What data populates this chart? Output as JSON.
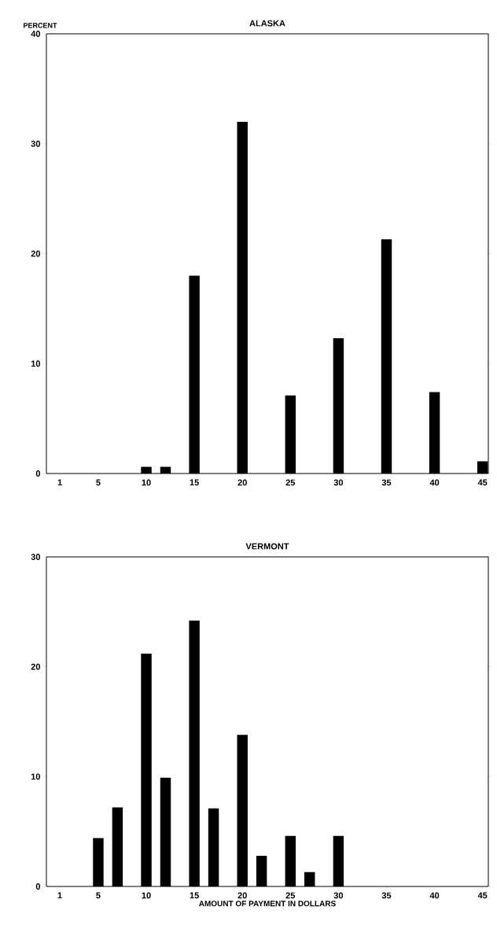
{
  "chart_data": [
    {
      "type": "bar",
      "title": "ALASKA",
      "ylabel": "PERCENT",
      "color": "#000000",
      "x": [
        10,
        12,
        15,
        20,
        25,
        30,
        35,
        40,
        45
      ],
      "values": [
        0.6,
        0.6,
        18,
        32,
        7.1,
        12.3,
        21.3,
        7.4,
        1.1
      ],
      "xlim": [
        -0.4,
        45.6
      ],
      "ylim": [
        0,
        40
      ],
      "xticks": [
        1,
        5,
        10,
        15,
        20,
        25,
        30,
        35,
        40,
        45
      ],
      "yticks": [
        0,
        10,
        20,
        30,
        40
      ]
    },
    {
      "type": "bar",
      "title": "VERMONT",
      "xlabel": "AMOUNT OF PAYMENT IN DOLLARS",
      "color": "#000000",
      "x": [
        5,
        7,
        10,
        12,
        15,
        17,
        20,
        22,
        25,
        27,
        30
      ],
      "values": [
        4.4,
        7.2,
        21.2,
        9.9,
        24.2,
        7.1,
        13.8,
        2.8,
        4.6,
        1.3,
        4.6
      ],
      "xlim": [
        -0.4,
        45.6
      ],
      "ylim": [
        0,
        30
      ],
      "xticks": [
        1,
        5,
        10,
        15,
        20,
        25,
        30,
        35,
        40,
        45
      ],
      "yticks": [
        0,
        10,
        20,
        30
      ]
    }
  ]
}
